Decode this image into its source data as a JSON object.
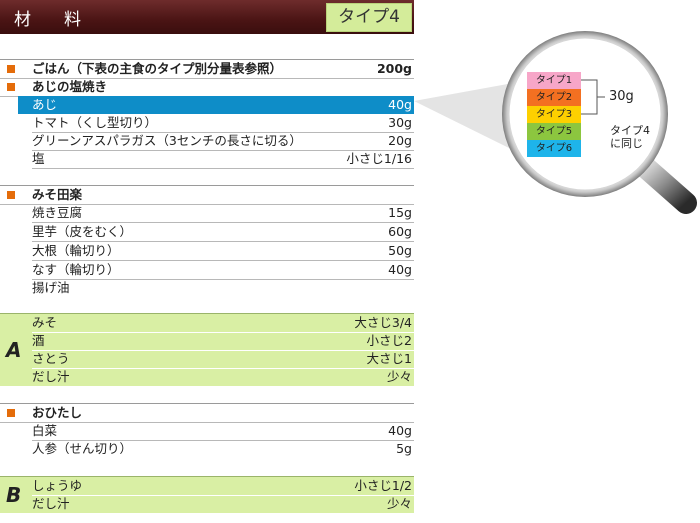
{
  "header": {
    "title": "材　料",
    "type_badge": "タイプ4"
  },
  "sections": [
    {
      "title": "ごはん（下表の主食のタイプ別分量表参照）",
      "amount": "200g"
    },
    {
      "title": "あじの塩焼き",
      "items": [
        {
          "name": "あじ",
          "amount": "40g"
        },
        {
          "name": "トマト（くし型切り）",
          "amount": "30g"
        },
        {
          "name": "グリーンアスパラガス（3センチの長さに切る）",
          "amount": "20g"
        },
        {
          "name": "塩",
          "amount": "小さじ1/16"
        }
      ]
    },
    {
      "title": "みそ田楽",
      "items": [
        {
          "name": "焼き豆腐",
          "amount": "15g"
        },
        {
          "name": "里芋（皮をむく）",
          "amount": "60g"
        },
        {
          "name": "大根（輪切り）",
          "amount": "50g"
        },
        {
          "name": "なす（輪切り）",
          "amount": "40g"
        },
        {
          "name": "揚げ油",
          "amount": ""
        }
      ]
    },
    {
      "group": "A",
      "items": [
        {
          "name": "みそ",
          "amount": "大さじ3/4"
        },
        {
          "name": "酒",
          "amount": "小さじ2"
        },
        {
          "name": "さとう",
          "amount": "大さじ1"
        },
        {
          "name": "だし汁",
          "amount": "少々"
        }
      ]
    },
    {
      "title": "おひたし",
      "items": [
        {
          "name": "白菜",
          "amount": "40g"
        },
        {
          "name": "人参（せん切り）",
          "amount": "5g"
        }
      ]
    },
    {
      "group": "B",
      "items": [
        {
          "name": "しょうゆ",
          "amount": "小さじ1/2"
        },
        {
          "name": "だし汁",
          "amount": "少々"
        }
      ]
    }
  ],
  "magnifier": {
    "types": [
      {
        "label": "タイプ1",
        "color": "#f7a6c8"
      },
      {
        "label": "タイプ2",
        "color": "#f37021"
      },
      {
        "label": "タイプ3",
        "color": "#fdd000"
      },
      {
        "label": "タイプ5",
        "color": "#8cc63f"
      },
      {
        "label": "タイプ6",
        "color": "#1eb4ea"
      }
    ],
    "note_amount": "30g",
    "note_same": "タイプ4\nに同じ"
  }
}
